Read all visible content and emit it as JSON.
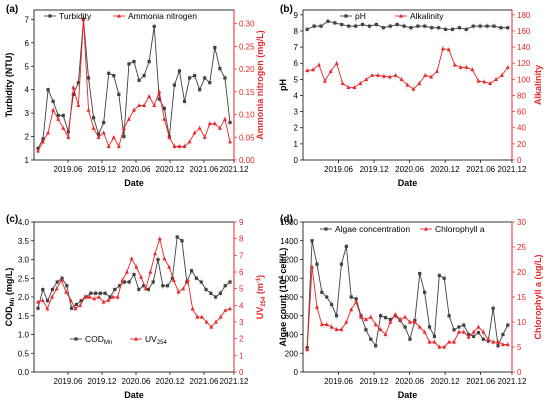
{
  "colors": {
    "left": "#404040",
    "right": "#e8262a",
    "axis": "#000000"
  },
  "chart_data": [
    {
      "type": "line",
      "panel_label": "(a)",
      "xlabel": "Date",
      "ylabel_left": "Turbidity (NTU)",
      "ylabel_right": "Ammonia nitrogen (mg/L)",
      "x_tick_labels": [
        "2019.06",
        "2019.12",
        "2020.06",
        "2020.12",
        "2021.06",
        "2021.12"
      ],
      "y_left_ticks": [
        "1",
        "2",
        "3",
        "4",
        "5",
        "6",
        "7"
      ],
      "y_right_ticks": [
        "0.00",
        "0.05",
        "0.10",
        "0.15",
        "0.20",
        "0.25",
        "0.30"
      ],
      "ylim_left": [
        1,
        7.4
      ],
      "ylim_right": [
        0,
        0.33
      ],
      "series": [
        {
          "name": "Turbidity",
          "axis": "left",
          "marker": "square",
          "values": [
            1.5,
            1.9,
            4.0,
            3.5,
            2.9,
            2.9,
            2.2,
            3.8,
            4.3,
            7.0,
            4.5,
            2.8,
            2.1,
            2.6,
            4.7,
            4.6,
            3.8,
            2.0,
            5.1,
            5.2,
            4.4,
            4.6,
            5.2,
            6.7,
            3.6,
            3.2,
            2.0,
            4.2,
            4.8,
            3.5,
            4.5,
            4.6,
            4.0,
            4.5,
            4.3,
            5.8,
            4.9,
            4.5,
            2.6
          ]
        },
        {
          "name": "Ammonia nitrogen",
          "axis": "right",
          "marker": "triangle",
          "values": [
            0.02,
            0.04,
            0.06,
            0.11,
            0.09,
            0.07,
            0.05,
            0.16,
            0.12,
            0.31,
            0.11,
            0.07,
            0.05,
            0.06,
            0.03,
            0.05,
            0.03,
            0.07,
            0.09,
            0.11,
            0.12,
            0.12,
            0.14,
            0.12,
            0.15,
            0.09,
            0.05,
            0.03,
            0.03,
            0.03,
            0.04,
            0.06,
            0.07,
            0.05,
            0.08,
            0.08,
            0.07,
            0.09,
            0.04
          ]
        }
      ]
    },
    {
      "type": "line",
      "panel_label": "(b)",
      "xlabel": "Date",
      "ylabel_left": "pH",
      "ylabel_right": "Alkalinity",
      "x_tick_labels": [
        "2019.06",
        "2019.12",
        "2020.06",
        "2020.12",
        "2021.06",
        "2021.12"
      ],
      "y_left_ticks": [
        "0",
        "1",
        "2",
        "3",
        "4",
        "5",
        "6",
        "7",
        "8",
        "9"
      ],
      "y_right_ticks": [
        "0",
        "20",
        "40",
        "60",
        "80",
        "100",
        "120",
        "140",
        "160",
        "180"
      ],
      "ylim_left": [
        0,
        9.3
      ],
      "ylim_right": [
        0,
        186
      ],
      "series": [
        {
          "name": "pH",
          "axis": "left",
          "marker": "square",
          "values": [
            8.1,
            8.3,
            8.3,
            8.6,
            8.5,
            8.4,
            8.3,
            8.3,
            8.4,
            8.3,
            8.4,
            8.2,
            8.3,
            8.4,
            8.3,
            8.2,
            8.3,
            8.3,
            8.2,
            8.2,
            8.1,
            8.1,
            8.2,
            8.1,
            8.3,
            8.3,
            8.3,
            8.3,
            8.2,
            8.2
          ]
        },
        {
          "name": "Alkalinity",
          "axis": "right",
          "marker": "triangle",
          "values": [
            111,
            112,
            118,
            98,
            110,
            120,
            95,
            90,
            90,
            95,
            100,
            105,
            105,
            104,
            103,
            105,
            100,
            93,
            88,
            95,
            105,
            103,
            110,
            138,
            137,
            118,
            115,
            115,
            112,
            98,
            97,
            95,
            100,
            105,
            115
          ]
        }
      ]
    },
    {
      "type": "line",
      "panel_label": "(c)",
      "xlabel": "Date",
      "ylabel_left": "COD",
      "ylabel_left_sub": "Mn",
      "ylabel_left_rest": " (mg/L)",
      "ylabel_right": "UV",
      "ylabel_right_sub": "254",
      "ylabel_right_rest": " (m",
      "ylabel_right_sup": "-1",
      "ylabel_right_end": ")",
      "x_tick_labels": [
        "2019.06",
        "2019.12",
        "2020.06",
        "2020.12",
        "2021.06",
        "2021.12"
      ],
      "y_left_ticks": [
        "0.0",
        "0.5",
        "1.0",
        "1.5",
        "2.0",
        "2.5",
        "3.0",
        "3.5",
        "4.0"
      ],
      "y_right_ticks": [
        "0",
        "1",
        "2",
        "3",
        "4",
        "5",
        "6",
        "7",
        "8",
        "9"
      ],
      "ylim_left": [
        0,
        4.0
      ],
      "ylim_right": [
        0,
        9
      ],
      "legend": {
        "series_1_base": "COD",
        "series_1_sub": "Mn",
        "series_2_base": "UV",
        "series_2_sub": "254"
      },
      "series": [
        {
          "name": "CODMn",
          "axis": "left",
          "marker": "square",
          "values": [
            1.7,
            2.2,
            1.9,
            2.2,
            2.4,
            2.5,
            2.3,
            1.7,
            1.8,
            1.9,
            2.0,
            2.1,
            2.1,
            2.1,
            2.1,
            2.0,
            2.2,
            2.3,
            2.4,
            2.4,
            2.6,
            2.2,
            2.3,
            2.2,
            2.4,
            3.0,
            2.3,
            2.3,
            2.5,
            3.6,
            3.5,
            2.4,
            2.7,
            2.5,
            2.4,
            2.2,
            2.1,
            2.0,
            2.1,
            2.3,
            2.4
          ]
        },
        {
          "name": "UV254",
          "axis": "right",
          "marker": "triangle",
          "values": [
            4.2,
            4.3,
            3.8,
            4.5,
            5.0,
            5.5,
            4.8,
            4.3,
            3.8,
            4.0,
            4.5,
            4.5,
            4.4,
            4.5,
            4.2,
            4.3,
            4.5,
            4.5,
            5.5,
            6.0,
            6.8,
            6.3,
            5.7,
            5.0,
            6.0,
            7.1,
            8.0,
            6.8,
            6.3,
            5.5,
            4.8,
            5.0,
            5.5,
            3.8,
            3.3,
            3.3,
            3.0,
            2.7,
            3.0,
            3.3,
            3.7,
            3.8
          ]
        }
      ]
    },
    {
      "type": "line",
      "panel_label": "(d)",
      "xlabel": "Date",
      "ylabel_left": "Algae count (10",
      "ylabel_left_sup": "4",
      "ylabel_left_rest": " cell/L)",
      "ylabel_right": "Chlorophyll a (ug/L)",
      "x_tick_labels": [
        "2019.06",
        "2019.12",
        "2020.06",
        "2020.12",
        "2021.06",
        "2021.12"
      ],
      "y_left_ticks": [
        "0",
        "200",
        "400",
        "600",
        "800",
        "1000",
        "1200",
        "1400",
        "1600"
      ],
      "y_right_ticks": [
        "0",
        "5",
        "10",
        "15",
        "20",
        "25",
        "30"
      ],
      "ylim_left": [
        0,
        1600
      ],
      "ylim_right": [
        0,
        30
      ],
      "series": [
        {
          "name": "Algae concentration",
          "axis": "left",
          "marker": "square",
          "values": [
            260,
            1400,
            1150,
            850,
            800,
            720,
            600,
            1150,
            1340,
            800,
            780,
            600,
            450,
            350,
            280,
            600,
            580,
            560,
            600,
            550,
            480,
            350,
            550,
            1050,
            850,
            480,
            380,
            1030,
            1000,
            600,
            450,
            480,
            500,
            400,
            380,
            420,
            350,
            330,
            680,
            280,
            400,
            500
          ]
        },
        {
          "name": "Chlorophyll a",
          "axis": "right",
          "marker": "triangle",
          "values": [
            4.5,
            21,
            13,
            9.5,
            9.5,
            9,
            8.5,
            8.5,
            10,
            12.5,
            14,
            11,
            10.5,
            11,
            9.5,
            8.5,
            7.5,
            10,
            11.5,
            10.5,
            11,
            10,
            10,
            9,
            8,
            6,
            6,
            5,
            5,
            6,
            6,
            8,
            8,
            7,
            8,
            9,
            8,
            6.5,
            6,
            6,
            5.5,
            5.5
          ]
        }
      ]
    }
  ]
}
